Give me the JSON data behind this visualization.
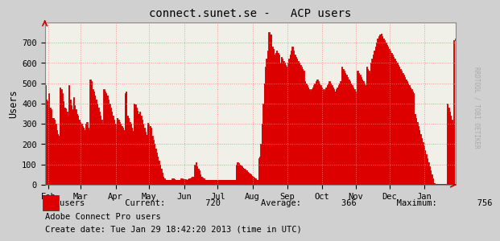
{
  "title": "connect.sunet.se -   ACP users",
  "ylabel": "Users",
  "background_color": "#d0d0d0",
  "plot_bg_color": "#f0f0e8",
  "grid_color": "#ff8080",
  "fill_color": "#dd0000",
  "line_color": "#cc0000",
  "ylim": [
    0,
    800
  ],
  "yticks": [
    0,
    100,
    200,
    300,
    400,
    500,
    600,
    700
  ],
  "month_labels": [
    "Feb",
    "Mar",
    "Apr",
    "May",
    "Jun",
    "Jul",
    "Aug",
    "Sep",
    "Oct",
    "Nov",
    "Dec",
    "Jan"
  ],
  "month_x": [
    3,
    32,
    63,
    93,
    124,
    154,
    185,
    216,
    247,
    277,
    307,
    338
  ],
  "xmin": 0,
  "xmax": 366,
  "current_val": "720",
  "average_val": "366",
  "maximum_val": "756",
  "legend_line1": "Adobe Connect Pro users",
  "legend_line2": "Create date: Tue Jan 29 18:42:20 2013 (time in UTC)",
  "watermark": "RRDTOOL / TOBI OETIKER",
  "data_y": [
    490,
    420,
    410,
    450,
    380,
    370,
    330,
    330,
    320,
    300,
    270,
    250,
    240,
    480,
    470,
    450,
    410,
    380,
    375,
    360,
    340,
    490,
    420,
    390,
    370,
    430,
    390,
    370,
    350,
    340,
    320,
    310,
    300,
    290,
    280,
    270,
    300,
    310,
    280,
    270,
    520,
    510,
    470,
    460,
    440,
    420,
    400,
    380,
    360,
    340,
    320,
    300,
    470,
    460,
    450,
    440,
    420,
    400,
    380,
    360,
    340,
    320,
    300,
    280,
    330,
    320,
    310,
    300,
    290,
    280,
    270,
    450,
    460,
    340,
    330,
    310,
    300,
    280,
    265,
    400,
    395,
    380,
    365,
    350,
    360,
    340,
    320,
    300,
    280,
    260,
    245,
    305,
    300,
    290,
    280,
    240,
    220,
    200,
    180,
    160,
    140,
    120,
    100,
    80,
    60,
    40,
    30,
    25,
    25,
    25,
    25,
    25,
    25,
    30,
    30,
    28,
    25,
    25,
    25,
    25,
    25,
    30,
    30,
    28,
    27,
    26,
    25,
    28,
    30,
    32,
    35,
    38,
    40,
    100,
    110,
    90,
    80,
    70,
    50,
    40,
    35,
    30,
    25,
    25,
    25,
    25,
    25,
    25,
    25,
    25,
    25,
    25,
    25,
    25,
    25,
    25,
    25,
    25,
    25,
    25,
    25,
    25,
    25,
    25,
    25,
    25,
    25,
    25,
    25,
    25,
    100,
    110,
    105,
    100,
    95,
    90,
    85,
    80,
    75,
    70,
    65,
    60,
    55,
    50,
    45,
    40,
    35,
    30,
    25,
    25,
    130,
    140,
    200,
    300,
    400,
    500,
    580,
    620,
    660,
    750,
    740,
    740,
    680,
    670,
    640,
    650,
    660,
    650,
    640,
    600,
    630,
    620,
    610,
    600,
    590,
    580,
    600,
    620,
    640,
    660,
    680,
    660,
    640,
    630,
    620,
    610,
    600,
    590,
    580,
    570,
    560,
    510,
    500,
    490,
    480,
    470,
    460,
    470,
    480,
    490,
    500,
    510,
    520,
    510,
    500,
    490,
    480,
    470,
    460,
    470,
    480,
    490,
    500,
    510,
    500,
    490,
    480,
    470,
    460,
    470,
    480,
    490,
    500,
    510,
    580,
    570,
    560,
    550,
    540,
    530,
    520,
    510,
    500,
    490,
    480,
    470,
    460,
    450,
    560,
    550,
    540,
    530,
    520,
    510,
    500,
    490,
    580,
    570,
    560,
    550,
    600,
    620,
    640,
    660,
    680,
    700,
    720,
    730,
    740,
    745,
    730,
    720,
    710,
    700,
    690,
    680,
    670,
    660,
    650,
    640,
    630,
    620,
    610,
    600,
    590,
    580,
    570,
    560,
    550,
    540,
    530,
    520,
    510,
    500,
    490,
    480,
    470,
    460,
    450,
    350,
    330,
    310,
    290,
    270,
    250,
    230,
    210,
    190,
    170,
    150,
    130,
    110,
    90,
    70,
    50,
    30,
    10,
    5,
    5,
    5,
    5,
    5,
    5,
    5,
    5,
    5,
    5,
    5,
    400,
    380,
    360,
    340,
    320,
    305,
    710,
    720
  ]
}
